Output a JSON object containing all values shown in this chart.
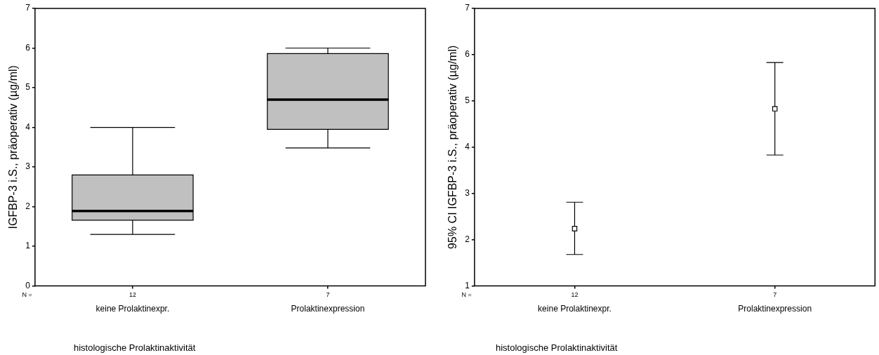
{
  "chart_data": [
    {
      "type": "box",
      "categories": [
        "keine Prolaktinexpr.",
        "Prolaktinexpression"
      ],
      "xlabel": "histologische Prolaktinaktivität",
      "ylabel": "IGFBP-3 i.S., präoperativ (µg/ml)",
      "color": "#c0c0c0",
      "boxes": [
        {
          "low": 1.3,
          "q1": 1.66,
          "median": 1.89,
          "q3": 2.8,
          "high": 4.0
        },
        {
          "low": 3.48,
          "q1": 3.95,
          "median": 4.7,
          "q3": 5.86,
          "high": 6.0
        }
      ],
      "ylim": [
        0,
        7
      ],
      "yticks": [
        0,
        1,
        2,
        3,
        4,
        5,
        6,
        7
      ],
      "grid": false,
      "legend": false,
      "annotations": [
        "N =",
        "12",
        "7"
      ]
    },
    {
      "type": "scatter",
      "categories": [
        "keine Prolaktinexpr.",
        "Prolaktinexpression"
      ],
      "xlabel": "histologische Prolaktinaktivität",
      "ylabel": "95% CI IGFBP-3 i.S., präoperativ (µg/ml)",
      "series": [
        {
          "color": "#000000",
          "values": [
            2.24,
            4.83
          ],
          "errors": [
            [
              1.68,
              2.81
            ],
            [
              3.83,
              5.83
            ]
          ]
        }
      ],
      "marker": "square",
      "ylim": [
        1,
        7
      ],
      "yticks": [
        1,
        2,
        3,
        4,
        5,
        6,
        7
      ],
      "grid": false,
      "legend": false,
      "annotations": [
        "N =",
        "12",
        "7"
      ]
    }
  ]
}
